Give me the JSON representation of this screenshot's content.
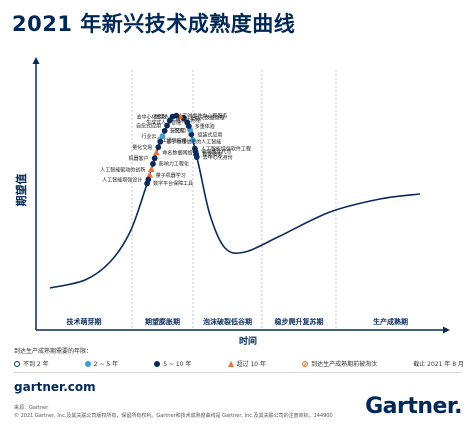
{
  "title": "2021 年新兴技术成熟度曲线",
  "chart_data": {
    "type": "scatter",
    "ylabel": "期望值",
    "xlabel": "时间",
    "phases": [
      "技术萌芽期",
      "期望膨胀期",
      "泡沫破裂低谷期",
      "稳步爬升复苏期",
      "生产成熟期"
    ],
    "points": [
      {
        "label": "人工智能增强软件工程",
        "t": 0.465,
        "status": "5-10"
      },
      {
        "label": "非同质化代币",
        "t": 0.47,
        "status": "5-10"
      },
      {
        "label": "数据编织",
        "t": 0.475,
        "status": "5-10"
      },
      {
        "label": "去中心化身份",
        "t": 0.48,
        "status": "5-10"
      },
      {
        "label": "员工通信应用",
        "t": 0.45,
        "status": "2-5"
      },
      {
        "label": "组装式应用",
        "t": 0.44,
        "status": "5-10"
      },
      {
        "label": "主权云",
        "t": 0.432,
        "status": "2-5"
      },
      {
        "label": "多重体验",
        "t": 0.425,
        "status": "5-10"
      },
      {
        "label": "生成式人工智能",
        "t": 0.418,
        "status": "5-10"
      },
      {
        "label": "主动元数据管理",
        "t": 0.408,
        "status": "5-10"
      },
      {
        "label": "数字人类",
        "t": 0.402,
        "status": ">10"
      },
      {
        "label": "实时事件中心即服务",
        "t": 0.395,
        "status": "5-10"
      },
      {
        "label": "去中心化金融",
        "t": 0.388,
        "status": "5-10"
      },
      {
        "label": "组装式网络",
        "t": 0.38,
        "status": "5-10"
      },
      {
        "label": "自愈式应用",
        "t": 0.37,
        "status": "5-10"
      },
      {
        "label": "无密钥",
        "t": 0.36,
        "status": "5-10"
      },
      {
        "label": "行业云",
        "t": 0.35,
        "status": "2-5"
      },
      {
        "label": "基于物理信息的人工智能",
        "t": 0.34,
        "status": "5-10"
      },
      {
        "label": "量化交易",
        "t": 0.33,
        "status": "5-10"
      },
      {
        "label": "命名数据网络",
        "t": 0.32,
        "status": ">10"
      },
      {
        "label": "机器客户",
        "t": 0.31,
        "status": "5-10"
      },
      {
        "label": "影响力工程化",
        "t": 0.3,
        "status": "5-10"
      },
      {
        "label": "人工智能驱动的创新",
        "t": 0.29,
        "status": ">10"
      },
      {
        "label": "量子机器学习",
        "t": 0.28,
        "status": ">10"
      },
      {
        "label": "人工智能增强设计",
        "t": 0.272,
        "status": "5-10"
      },
      {
        "label": "数字平台保障工具",
        "t": 0.265,
        "status": "5-10"
      }
    ]
  },
  "legend": {
    "heading": "到达生产成熟期需要的年限：",
    "items": [
      {
        "key": "<2",
        "label": "不到 2 年",
        "color": "#ffffff"
      },
      {
        "key": "2-5",
        "label": "2 ~ 5 年",
        "color": "#3d9dd9"
      },
      {
        "key": "5-10",
        "label": "5 ~ 10 年",
        "color": "#0b2a5b"
      },
      {
        "key": ">10",
        "label": "超过 10 年",
        "color": "#e8743b"
      },
      {
        "key": "obsolete",
        "label": "到达生产成熟期前被淘汰",
        "color": "#e8743b"
      }
    ],
    "as_of": "截止 2021 年 8 月"
  },
  "footer": {
    "site": "gartner.com",
    "source_line1": "来源：Gartner",
    "source_line2": "© 2021 Gartner, Inc.及其关联公司版权所有，保留所有权利。Gartner和技术成熟度曲线是 Gartner, Inc.及其关联公司的注册商标。144900",
    "brand": "Gartner."
  }
}
